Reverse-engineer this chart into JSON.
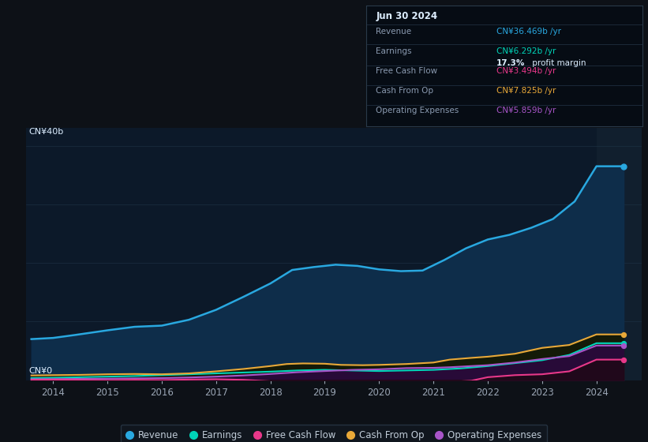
{
  "bg_color": "#0d1117",
  "plot_bg_color": "#0c1929",
  "grid_color": "#1e3347",
  "text_color": "#9aa5b4",
  "title_label": "CN¥40b",
  "zero_label": "CN¥0",
  "ylim": [
    0,
    43
  ],
  "xlim": [
    2013.5,
    2024.83
  ],
  "xticks": [
    2014,
    2015,
    2016,
    2017,
    2018,
    2019,
    2020,
    2021,
    2022,
    2023,
    2024
  ],
  "revenue_x": [
    2013.6,
    2014.0,
    2014.4,
    2015.0,
    2015.5,
    2016.0,
    2016.5,
    2017.0,
    2017.5,
    2018.0,
    2018.4,
    2018.8,
    2019.2,
    2019.6,
    2020.0,
    2020.4,
    2020.8,
    2021.2,
    2021.6,
    2022.0,
    2022.4,
    2022.8,
    2023.2,
    2023.6,
    2024.0,
    2024.5
  ],
  "revenue_y": [
    7.0,
    7.2,
    7.7,
    8.5,
    9.1,
    9.3,
    10.3,
    12.0,
    14.2,
    16.5,
    18.8,
    19.3,
    19.7,
    19.5,
    18.9,
    18.6,
    18.7,
    20.5,
    22.5,
    24.0,
    24.8,
    26.0,
    27.5,
    30.5,
    36.5,
    36.5
  ],
  "earnings_x": [
    2013.6,
    2014.0,
    2014.5,
    2015.0,
    2015.5,
    2016.0,
    2016.5,
    2017.0,
    2017.5,
    2018.0,
    2018.5,
    2019.0,
    2019.5,
    2020.0,
    2020.5,
    2021.0,
    2021.5,
    2022.0,
    2022.5,
    2023.0,
    2023.5,
    2024.0,
    2024.5
  ],
  "earnings_y": [
    0.35,
    0.4,
    0.5,
    0.6,
    0.7,
    0.85,
    1.0,
    1.15,
    1.3,
    1.45,
    1.65,
    1.75,
    1.65,
    1.55,
    1.65,
    1.75,
    2.0,
    2.4,
    2.9,
    3.4,
    4.3,
    6.3,
    6.3
  ],
  "cashop_x": [
    2013.6,
    2014.0,
    2014.5,
    2015.0,
    2015.5,
    2016.0,
    2016.5,
    2017.0,
    2017.5,
    2018.0,
    2018.3,
    2018.6,
    2019.0,
    2019.3,
    2019.7,
    2020.0,
    2020.5,
    2021.0,
    2021.3,
    2021.7,
    2022.0,
    2022.5,
    2023.0,
    2023.5,
    2024.0,
    2024.5
  ],
  "cashop_y": [
    0.8,
    0.85,
    0.9,
    1.0,
    1.05,
    1.0,
    1.15,
    1.5,
    1.9,
    2.4,
    2.75,
    2.85,
    2.8,
    2.6,
    2.55,
    2.6,
    2.75,
    3.0,
    3.5,
    3.8,
    4.0,
    4.5,
    5.5,
    6.0,
    7.8,
    7.8
  ],
  "opex_x": [
    2013.6,
    2014.0,
    2014.5,
    2015.0,
    2015.5,
    2016.0,
    2016.5,
    2017.0,
    2017.5,
    2018.0,
    2018.5,
    2019.0,
    2019.5,
    2020.0,
    2020.5,
    2021.0,
    2021.3,
    2021.7,
    2022.0,
    2022.5,
    2023.0,
    2023.5,
    2024.0,
    2024.5
  ],
  "opex_y": [
    0.15,
    0.18,
    0.22,
    0.25,
    0.3,
    0.35,
    0.45,
    0.6,
    0.8,
    1.05,
    1.35,
    1.55,
    1.75,
    1.85,
    2.05,
    2.1,
    2.2,
    2.4,
    2.55,
    3.0,
    3.6,
    4.1,
    5.9,
    5.9
  ],
  "fcf_x": [
    2013.6,
    2014.0,
    2014.5,
    2015.0,
    2015.5,
    2016.0,
    2016.5,
    2017.0,
    2017.5,
    2018.0,
    2018.3,
    2018.6,
    2019.0,
    2019.3,
    2019.7,
    2020.0,
    2020.3,
    2020.7,
    2021.0,
    2021.3,
    2021.7,
    2022.0,
    2022.5,
    2023.0,
    2023.5,
    2024.0,
    2024.5
  ],
  "fcf_y": [
    0.05,
    0.05,
    0.0,
    -0.05,
    0.05,
    0.0,
    0.1,
    0.15,
    0.05,
    -0.2,
    -0.55,
    -0.8,
    -1.0,
    -0.9,
    -0.85,
    -1.2,
    -1.0,
    -0.6,
    -0.5,
    -0.3,
    -0.1,
    0.5,
    0.85,
    1.0,
    1.5,
    3.5,
    3.5
  ],
  "revenue_color": "#29a8e0",
  "revenue_fill": "#0e2d4a",
  "earnings_color": "#00d4b8",
  "earnings_fill": "#0d3028",
  "cashop_color": "#e8a838",
  "cashop_fill": "#1a1a08",
  "opex_color": "#a855c8",
  "opex_fill": "#280a38",
  "fcf_color": "#e8388a",
  "fcf_fill_neg": "#3a0a28",
  "fcf_fill_pos": "#200818",
  "shade_start": 2024.0,
  "shade_color": "#111f2e",
  "tooltip_bg": "#060c14",
  "tooltip_border": "#2a3a4a",
  "tooltip_text": "#8a9ab0",
  "tooltip_title": "#ddeeff",
  "legend_bg": "#111820",
  "legend_border": "#2a3a4a",
  "legend_text": "#c0ccd8"
}
